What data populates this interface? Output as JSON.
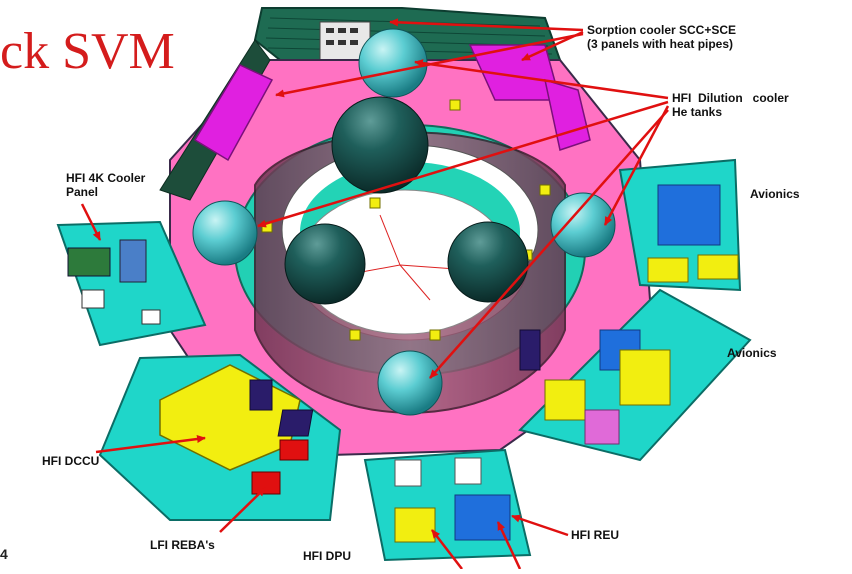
{
  "title": "ck SVM",
  "labels": {
    "sorption_line1": "Sorption cooler SCC+SCE",
    "sorption_line2": "(3 panels with heat pipes)",
    "dilution_line1": "HFI  Dilution   cooler",
    "dilution_line2": "He tanks",
    "cooler4k_line1": "HFI 4K Cooler",
    "cooler4k_line2": "Panel",
    "avionics_top": "Avionics",
    "avionics_right": "Avionics",
    "hfi_dccu": "HFI DCCU",
    "lfi_reba": "LFI REBA's",
    "hfi_dpu": "HFI DPU",
    "hfi_reu": "HFI REU"
  },
  "page_number": "4",
  "colors": {
    "title": "#d41c1c",
    "arrow": "#e01010",
    "panel_cyan": "#1fd6c9",
    "structure_pink": "#ff6fbf",
    "cylinder": "#8a4b66",
    "magenta": "#e020e0",
    "yellow": "#f2ee10",
    "blue": "#1e6fdc",
    "sphere": "#2fb5bb",
    "sphere_dark": "#14504e"
  }
}
